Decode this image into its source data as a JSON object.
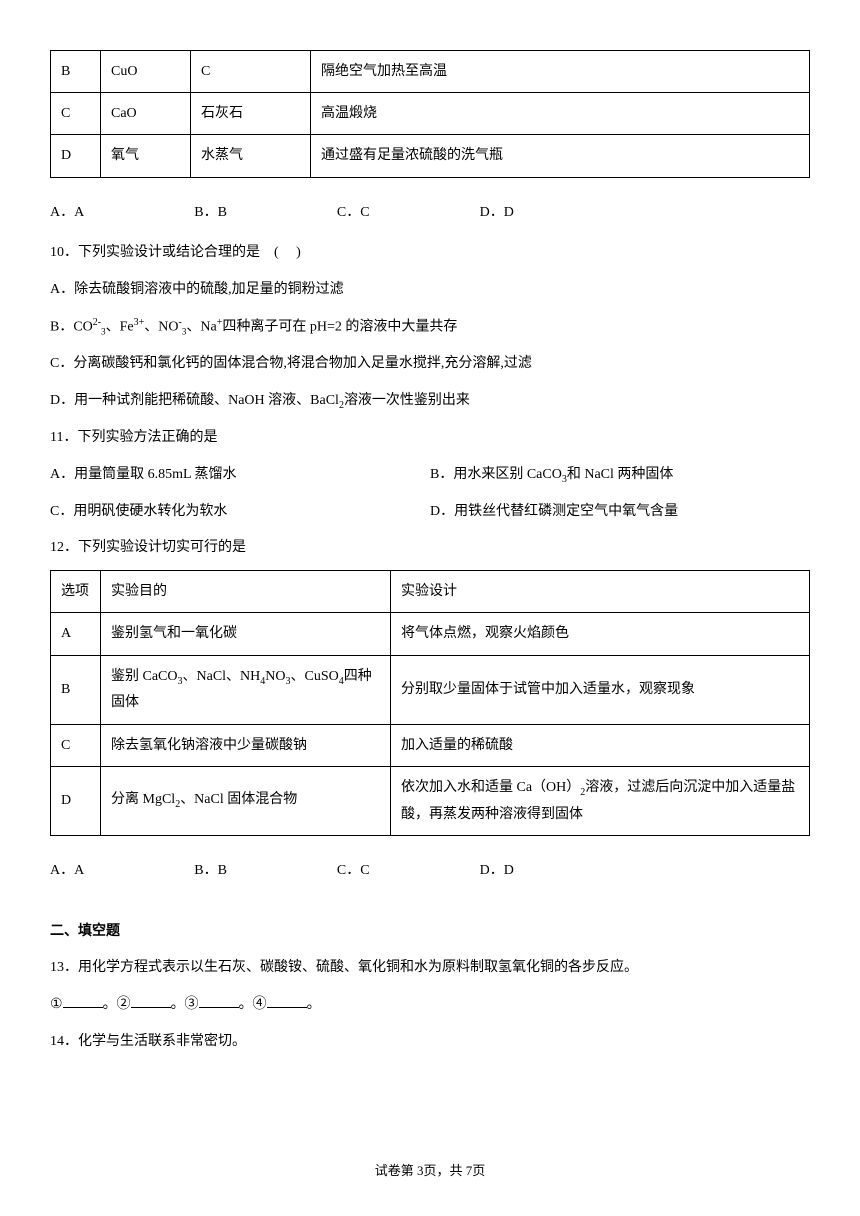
{
  "table1": {
    "rows": [
      {
        "opt": "B",
        "col1": "CuO",
        "col2": "C",
        "col3": "隔绝空气加热至高温"
      },
      {
        "opt": "C",
        "col1": "CaO",
        "col2": "石灰石",
        "col3": "高温煅烧"
      },
      {
        "opt": "D",
        "col1": "氧气",
        "col2": "水蒸气",
        "col3": "通过盛有足量浓硫酸的洗气瓶"
      }
    ]
  },
  "options9": {
    "a": "A．A",
    "b": "B．B",
    "c": "C．C",
    "d": "D．D"
  },
  "q10": {
    "stem": "10．下列实验设计或结论合理的是　(　  )",
    "a": "A．除去硫酸铜溶液中的硫酸,加足量的铜粉过滤",
    "b_pre": "B．CO",
    "b_mid1": "、Fe",
    "b_mid2": "、NO",
    "b_mid3": "、Na",
    "b_post": "四种离子可在 pH=2 的溶液中大量共存",
    "c": "C．分离碳酸钙和氯化钙的固体混合物,将混合物加入足量水搅拌,充分溶解,过滤",
    "d_pre": "D．用一种试剂能把稀硫酸、NaOH 溶液、BaCl",
    "d_post": "溶液一次性鉴别出来"
  },
  "q11": {
    "stem": "11．下列实验方法正确的是",
    "a": "A．用量筒量取 6.85mL 蒸馏水",
    "b_pre": "B．用水来区别 CaCO",
    "b_post": "和 NaCl 两种固体",
    "c": "C．用明矾使硬水转化为软水",
    "d": "D．用铁丝代替红磷测定空气中氧气含量"
  },
  "q12": {
    "stem": "12．下列实验设计切实可行的是",
    "header": {
      "opt": "选项",
      "purpose": "实验目的",
      "design": "实验设计"
    },
    "rows": [
      {
        "opt": "A",
        "purpose": "鉴别氢气和一氧化碳",
        "design": "将气体点燃，观察火焰颜色"
      },
      {
        "opt": "B",
        "purpose_pre": "鉴别 CaCO",
        "purpose_mid1": "、NaCl、NH",
        "purpose_mid2": "NO",
        "purpose_mid3": "、CuSO",
        "purpose_post": "四种固体",
        "design": "分别取少量固体于试管中加入适量水，观察现象"
      },
      {
        "opt": "C",
        "purpose": "除去氢氧化钠溶液中少量碳酸钠",
        "design": "加入适量的稀硫酸"
      },
      {
        "opt": "D",
        "purpose_pre": "分离 MgCl",
        "purpose_post": "、NaCl 固体混合物",
        "design_pre": "依次加入水和适量 Ca（OH）",
        "design_post": "溶液，过滤后向沉淀中加入适量盐酸，再蒸发两种溶液得到固体"
      }
    ]
  },
  "options12": {
    "a": "A．A",
    "b": "B．B",
    "c": "C．C",
    "d": "D．D"
  },
  "section2": "二、填空题",
  "q13": {
    "stem": "13．用化学方程式表示以生石灰、碳酸铵、硫酸、氧化铜和水为原料制取氢氧化铜的各步反应。",
    "blanks": {
      "n1": "①",
      "n2": "。②",
      "n3": "。③",
      "n4": "。④",
      "end": "。"
    }
  },
  "q14": "14．化学与生活联系非常密切。",
  "footer": "试卷第 3页，共 7页"
}
